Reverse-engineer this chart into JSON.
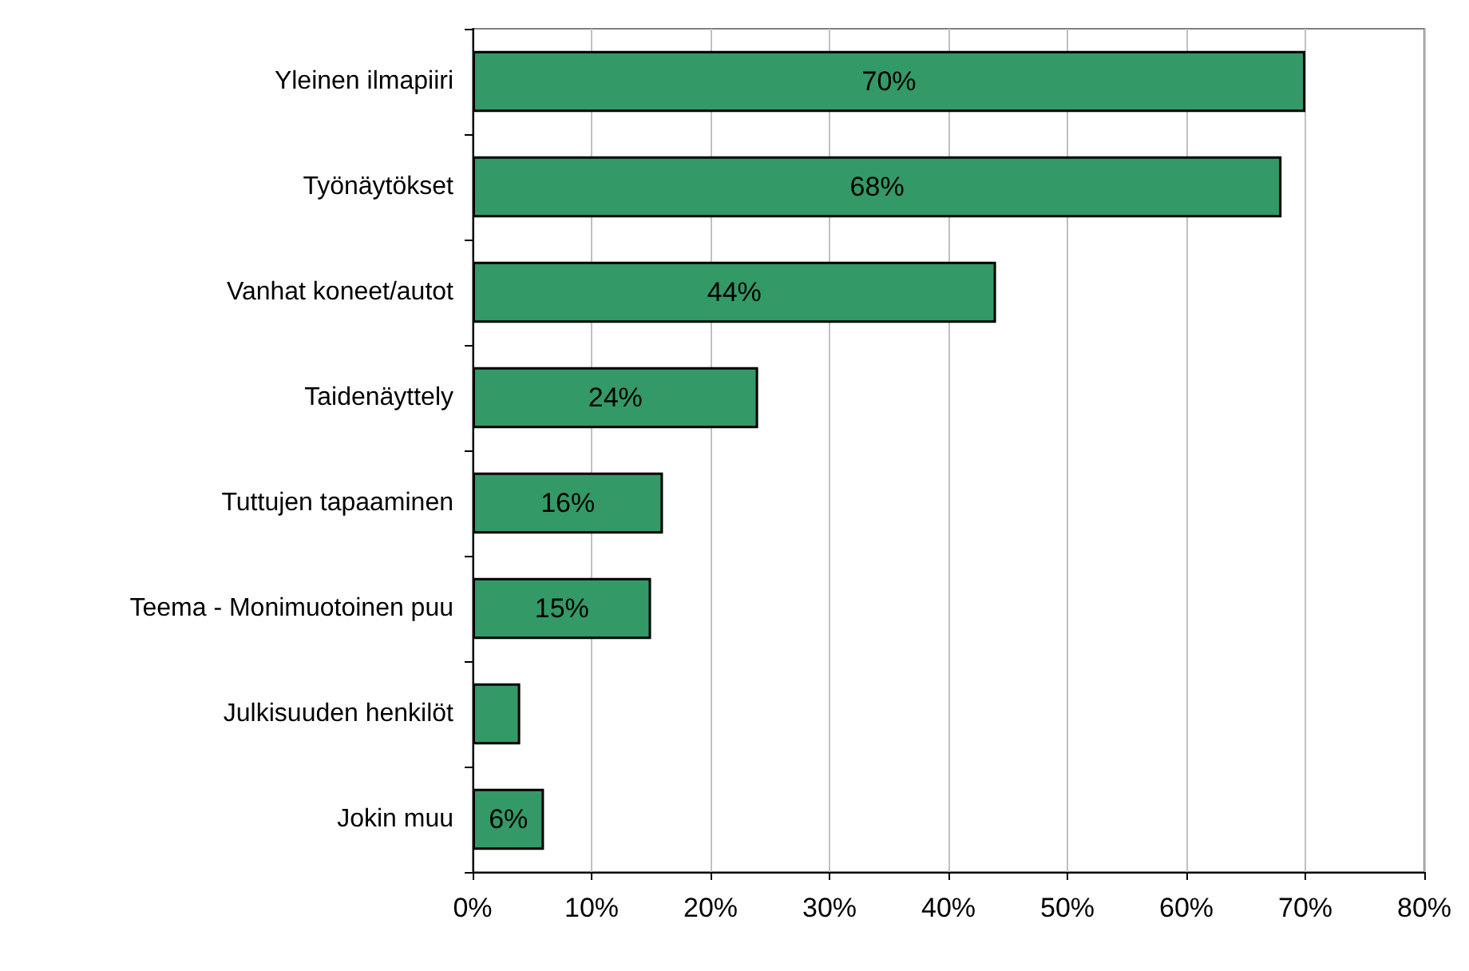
{
  "chart_data": {
    "type": "bar",
    "orientation": "horizontal",
    "categories": [
      "Yleinen ilmapiiri",
      "Työnäytökset",
      "Vanhat koneet/autot",
      "Taidenäyttely",
      "Tuttujen tapaaminen",
      "Teema - Monimuotoinen puu",
      "Julkisuuden henkilöt",
      "Jokin muu"
    ],
    "values": [
      70,
      68,
      44,
      24,
      16,
      15,
      4,
      6
    ],
    "value_labels": [
      "70%",
      "68%",
      "44%",
      "24%",
      "16%",
      "15%",
      null,
      "6%"
    ],
    "color": "#339966",
    "xlim": [
      0,
      80
    ],
    "xticks": [
      {
        "value": 0,
        "label": "0%"
      },
      {
        "value": 10,
        "label": "10%"
      },
      {
        "value": 20,
        "label": "20%"
      },
      {
        "value": 30,
        "label": "30%"
      },
      {
        "value": 40,
        "label": "40%"
      },
      {
        "value": 50,
        "label": "50%"
      },
      {
        "value": 60,
        "label": "60%"
      },
      {
        "value": 70,
        "label": "70%"
      },
      {
        "value": 80,
        "label": "80%"
      }
    ],
    "grid": "x"
  }
}
